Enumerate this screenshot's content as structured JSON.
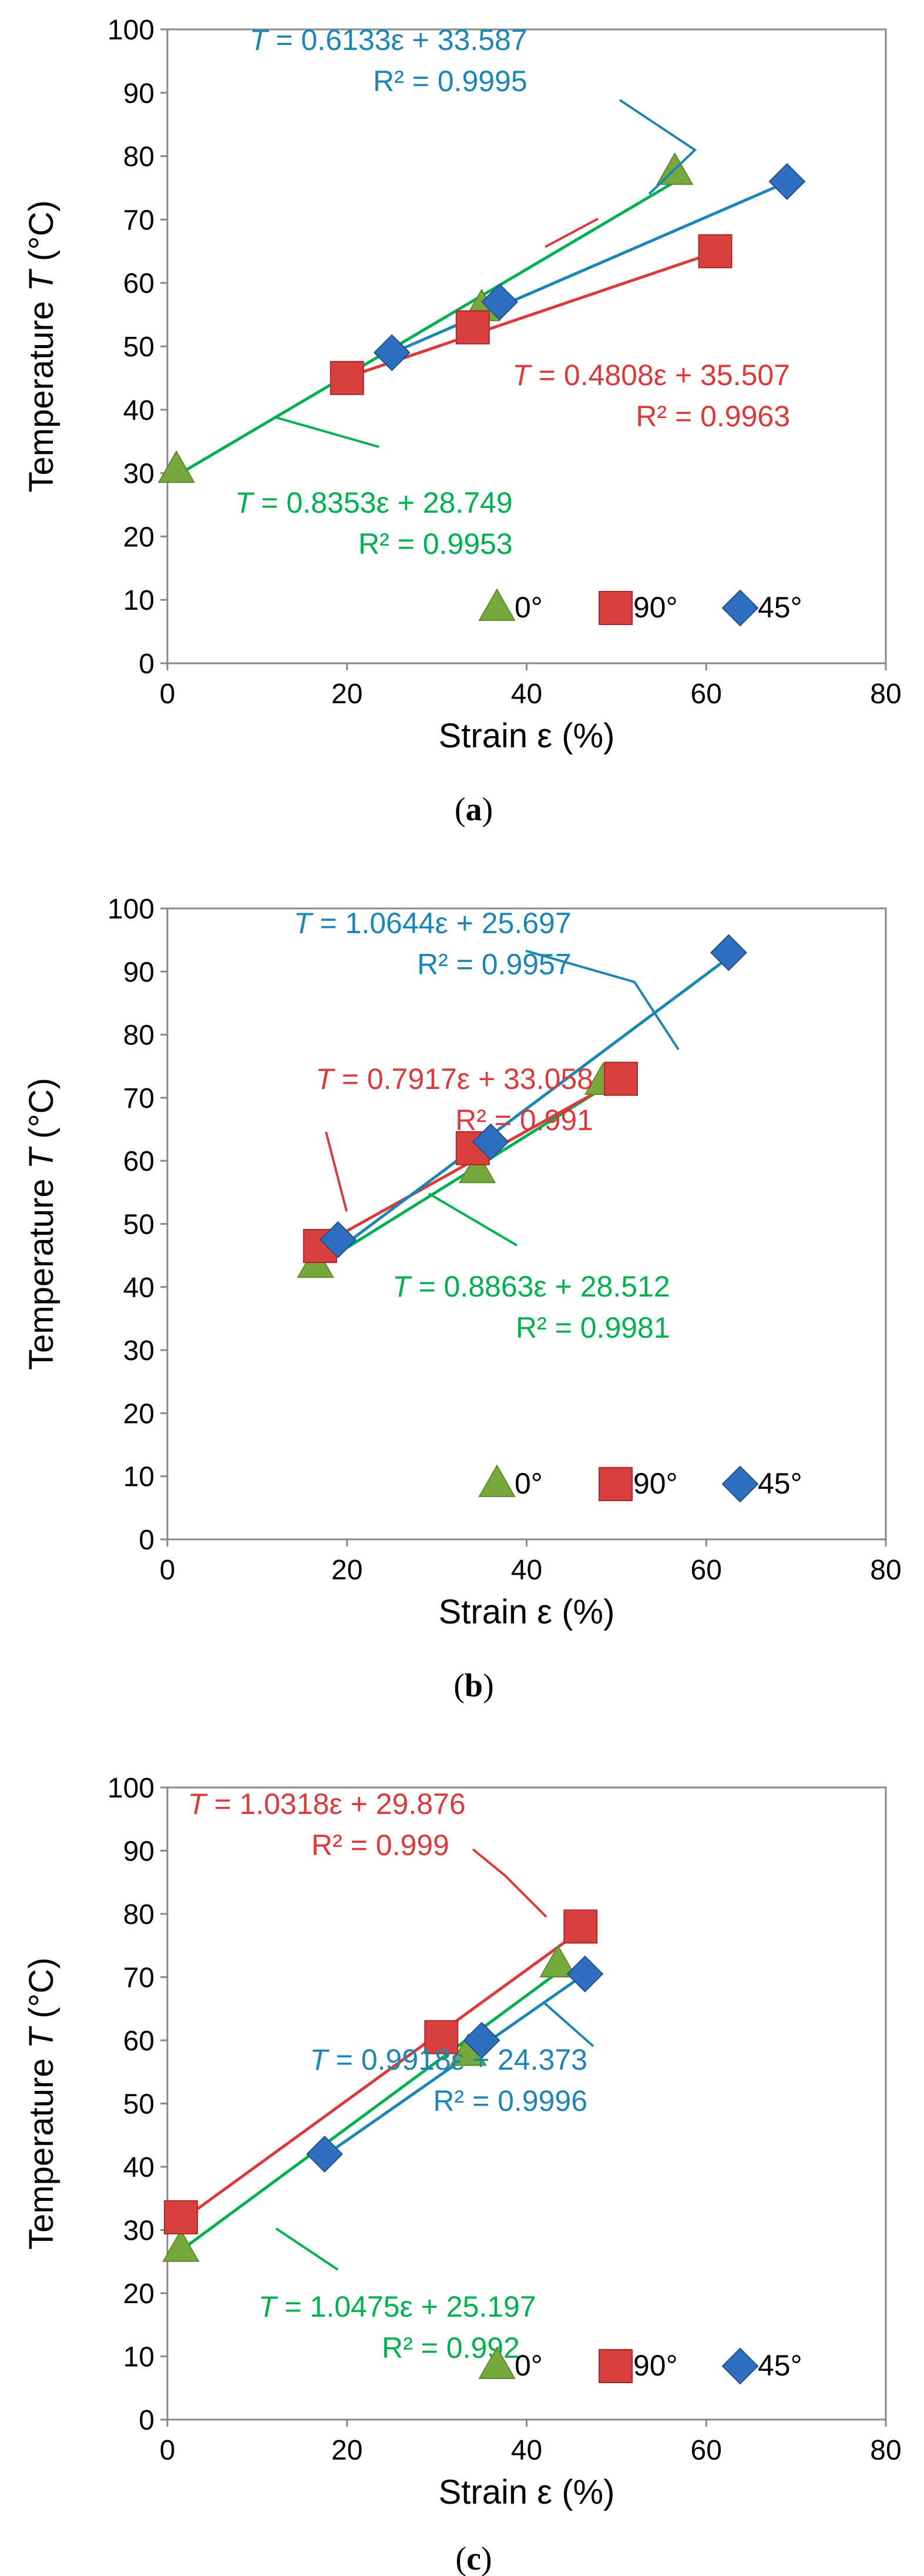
{
  "colors": {
    "green": "#00b050",
    "red": "#d93a3a",
    "blue": "#1b86b4",
    "marker_green": "#77a83c",
    "marker_red": "#d84040",
    "marker_blue": "#2e6fbf"
  },
  "chart_data": [
    {
      "type": "scatter",
      "panel_label": "a",
      "xlabel": "Strain ε (%)",
      "ylabel_parts": [
        "Temperature ",
        "T",
        " (°C)"
      ],
      "xlim": [
        0,
        80
      ],
      "ylim": [
        0,
        100
      ],
      "xticks": [
        "0",
        "20",
        "40",
        "60",
        "80"
      ],
      "yticks": [
        "0",
        "10",
        "20",
        "30",
        "40",
        "50",
        "60",
        "70",
        "80",
        "90",
        "100"
      ],
      "legend": [
        "0°",
        "90°",
        "45°"
      ],
      "series": [
        {
          "name": "0°",
          "color_key": "green",
          "marker": "triangle",
          "points": [
            [
              1,
              30.5
            ],
            [
              35,
              56
            ],
            [
              56.5,
              77.5
            ]
          ],
          "fit": {
            "slope": 0.8353,
            "intercept": 28.749,
            "x_range": [
              0.5,
              57
            ]
          },
          "equation": [
            "T",
            " = 0.8353ε + 28.749"
          ],
          "r2": "R² = 0.9953"
        },
        {
          "name": "90°",
          "color_key": "red",
          "marker": "square",
          "points": [
            [
              20,
              45
            ],
            [
              34,
              53
            ],
            [
              61,
              65
            ]
          ],
          "fit": {
            "slope": 0.4808,
            "intercept": 35.507,
            "x_range": [
              19,
              62
            ]
          },
          "equation": [
            "T",
            " = 0.4808ε + 35.507"
          ],
          "r2": "R² = 0.9963"
        },
        {
          "name": "45°",
          "color_key": "blue",
          "marker": "diamond",
          "points": [
            [
              25,
              49
            ],
            [
              37,
              57
            ],
            [
              69,
              76
            ]
          ],
          "fit": {
            "slope": 0.6133,
            "intercept": 33.587,
            "x_range": [
              24,
              69
            ]
          },
          "equation": [
            "T",
            " = 0.6133ε + 33.587"
          ],
          "r2": "R² = 0.9995"
        }
      ]
    },
    {
      "type": "scatter",
      "panel_label": "b",
      "xlabel": "Strain ε (%)",
      "ylabel_parts": [
        "Temperature ",
        "T",
        " (°C)"
      ],
      "xlim": [
        0,
        80
      ],
      "ylim": [
        0,
        100
      ],
      "xticks": [
        "0",
        "20",
        "40",
        "60",
        "80"
      ],
      "yticks": [
        "0",
        "10",
        "20",
        "30",
        "40",
        "50",
        "60",
        "70",
        "80",
        "90",
        "100"
      ],
      "legend": [
        "0°",
        "90°",
        "45°"
      ],
      "series": [
        {
          "name": "0°",
          "color_key": "green",
          "marker": "triangle",
          "points": [
            [
              16.5,
              43.5
            ],
            [
              34.5,
              58.5
            ],
            [
              48.5,
              72.5
            ]
          ],
          "fit": {
            "slope": 0.8863,
            "intercept": 28.512,
            "x_range": [
              16,
              49
            ]
          },
          "equation": [
            "T",
            " = 0.8863ε + 28.512"
          ],
          "r2": "R² = 0.9981"
        },
        {
          "name": "90°",
          "color_key": "red",
          "marker": "square",
          "points": [
            [
              17,
              46.5
            ],
            [
              34,
              62
            ],
            [
              50.5,
              73
            ]
          ],
          "fit": {
            "slope": 0.7917,
            "intercept": 33.058,
            "x_range": [
              16.5,
              51
            ]
          },
          "equation": [
            "T",
            " = 0.7917ε + 33.058"
          ],
          "r2": "R² = 0.991"
        },
        {
          "name": "45°",
          "color_key": "blue",
          "marker": "diamond",
          "points": [
            [
              19,
              47.5
            ],
            [
              36,
              63
            ],
            [
              62.5,
              93
            ]
          ],
          "fit": {
            "slope": 1.0644,
            "intercept": 25.697,
            "x_range": [
              18,
              63
            ]
          },
          "equation": [
            "T",
            " = 1.0644ε + 25.697"
          ],
          "r2": "R² = 0.9957"
        }
      ]
    },
    {
      "type": "scatter",
      "panel_label": "c",
      "xlabel": "Strain ε (%)",
      "ylabel_parts": [
        "Temperature ",
        "T",
        " (°C)"
      ],
      "xlim": [
        0,
        80
      ],
      "ylim": [
        0,
        100
      ],
      "xticks": [
        "0",
        "20",
        "40",
        "60",
        "80"
      ],
      "yticks": [
        "0",
        "10",
        "20",
        "30",
        "40",
        "50",
        "60",
        "70",
        "80",
        "90",
        "100"
      ],
      "legend": [
        "0°",
        "90°",
        "45°"
      ],
      "series": [
        {
          "name": "0°",
          "color_key": "green",
          "marker": "triangle",
          "points": [
            [
              1.5,
              27
            ],
            [
              33.5,
              58
            ],
            [
              43.5,
              72
            ]
          ],
          "fit": {
            "slope": 1.0475,
            "intercept": 25.197,
            "x_range": [
              1,
              44
            ]
          },
          "equation": [
            "T",
            " = 1.0475ε + 25.197"
          ],
          "r2": "R² = 0.992"
        },
        {
          "name": "90°",
          "color_key": "red",
          "marker": "square",
          "points": [
            [
              1.5,
              32
            ],
            [
              30.5,
              60.5
            ],
            [
              46,
              78
            ]
          ],
          "fit": {
            "slope": 1.0318,
            "intercept": 29.876,
            "x_range": [
              1,
              46
            ]
          },
          "equation": [
            "T",
            " = 1.0318ε + 29.876"
          ],
          "r2": "R² = 0.999"
        },
        {
          "name": "45°",
          "color_key": "blue",
          "marker": "diamond",
          "points": [
            [
              17.5,
              42
            ],
            [
              35,
              60
            ],
            [
              46.5,
              70.5
            ]
          ],
          "fit": {
            "slope": 0.9918,
            "intercept": 24.373,
            "x_range": [
              17,
              47
            ]
          },
          "equation": [
            "T",
            " = 0.9918ε + 24.373"
          ],
          "r2": "R² = 0.9996"
        }
      ]
    }
  ]
}
